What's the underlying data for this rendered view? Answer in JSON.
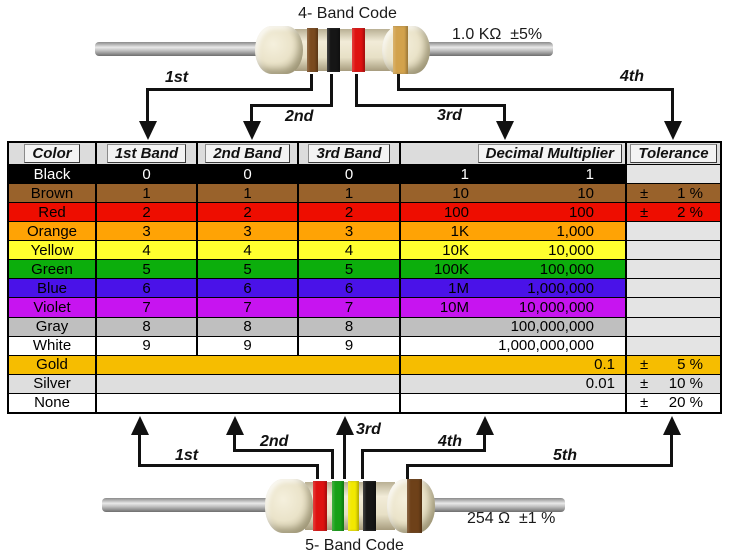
{
  "top_section": {
    "title": "4- Band Code",
    "resistor_label": "1.0 KΩ  ±5%",
    "arrow_labels": [
      "1st",
      "2nd",
      "3rd",
      "4th"
    ],
    "bands": [
      {
        "name": "brown",
        "hex": "#7a4a1e"
      },
      {
        "name": "black",
        "hex": "#161616"
      },
      {
        "name": "red",
        "hex": "#de1210"
      },
      {
        "name": "gold",
        "hex": "#d2a24c"
      }
    ]
  },
  "table": {
    "headers": [
      "Color",
      "1st Band",
      "2nd Band",
      "3rd Band",
      "Decimal Multiplier",
      "Tolerance"
    ],
    "header_bg": "#dcdcdc",
    "empty_tolerance_bg": "#e4e4e4",
    "rows": [
      {
        "color": "Black",
        "bg": "#000000",
        "fg": "#ffffff",
        "band1": "0",
        "band2": "0",
        "band3": "0",
        "mult_short": "1",
        "mult_long": "1",
        "tol_sign": "",
        "tol_value": "",
        "merged": false
      },
      {
        "color": "Brown",
        "bg": "#99622b",
        "fg": "#000000",
        "band1": "1",
        "band2": "1",
        "band3": "1",
        "mult_short": "10",
        "mult_long": "10",
        "tol_sign": "±",
        "tol_value": "1 %",
        "merged": false
      },
      {
        "color": "Red",
        "bg": "#ee0d00",
        "fg": "#000000",
        "band1": "2",
        "band2": "2",
        "band3": "2",
        "mult_short": "100",
        "mult_long": "100",
        "tol_sign": "±",
        "tol_value": "2 %",
        "merged": false
      },
      {
        "color": "Orange",
        "bg": "#ffa305",
        "fg": "#000000",
        "band1": "3",
        "band2": "3",
        "band3": "3",
        "mult_short": "1K",
        "mult_long": "1,000",
        "tol_sign": "",
        "tol_value": "",
        "merged": false
      },
      {
        "color": "Yellow",
        "bg": "#ffff2e",
        "fg": "#000000",
        "band1": "4",
        "band2": "4",
        "band3": "4",
        "mult_short": "10K",
        "mult_long": "10,000",
        "tol_sign": "",
        "tol_value": "",
        "merged": false
      },
      {
        "color": "Green",
        "bg": "#0cae0c",
        "fg": "#000000",
        "band1": "5",
        "band2": "5",
        "band3": "5",
        "mult_short": "100K",
        "mult_long": "100,000",
        "tol_sign": "",
        "tol_value": "",
        "merged": false
      },
      {
        "color": "Blue",
        "bg": "#4a12e8",
        "fg": "#000000",
        "band1": "6",
        "band2": "6",
        "band3": "6",
        "mult_short": "1M",
        "mult_long": "1,000,000",
        "tol_sign": "",
        "tol_value": "",
        "merged": false
      },
      {
        "color": "Violet",
        "bg": "#c714f0",
        "fg": "#000000",
        "band1": "7",
        "band2": "7",
        "band3": "7",
        "mult_short": "10M",
        "mult_long": "10,000,000",
        "tol_sign": "",
        "tol_value": "",
        "merged": false
      },
      {
        "color": "Gray",
        "bg": "#bfbfbf",
        "fg": "#000000",
        "band1": "8",
        "band2": "8",
        "band3": "8",
        "mult_short": "",
        "mult_long": "100,000,000",
        "tol_sign": "",
        "tol_value": "",
        "merged": false
      },
      {
        "color": "White",
        "bg": "#ffffff",
        "fg": "#000000",
        "band1": "9",
        "band2": "9",
        "band3": "9",
        "mult_short": "",
        "mult_long": "1,000,000,000",
        "tol_sign": "",
        "tol_value": "",
        "merged": false
      },
      {
        "color": "Gold",
        "bg": "#f6bd00",
        "fg": "#000000",
        "band1": "",
        "band2": "",
        "band3": "",
        "mult_short": "",
        "mult_long": "0.1",
        "tol_sign": "±",
        "tol_value": "5 %",
        "merged": true
      },
      {
        "color": "Silver",
        "bg": "#dedede",
        "fg": "#000000",
        "band1": "",
        "band2": "",
        "band3": "",
        "mult_short": "",
        "mult_long": "0.01",
        "tol_sign": "±",
        "tol_value": "10 %",
        "merged": true
      },
      {
        "color": "None",
        "bg": "#ffffff",
        "fg": "#000000",
        "band1": "",
        "band2": "",
        "band3": "",
        "mult_short": "",
        "mult_long": "",
        "tol_sign": "±",
        "tol_value": "20 %",
        "merged": true
      }
    ]
  },
  "bottom_section": {
    "title": "5- Band Code",
    "resistor_label": "254 Ω  ±1 %",
    "arrow_labels": [
      "1st",
      "2nd",
      "3rd",
      "4th",
      "5th"
    ],
    "bands": [
      {
        "name": "red",
        "hex": "#de1210"
      },
      {
        "name": "green",
        "hex": "#17a017"
      },
      {
        "name": "yellow",
        "hex": "#f2e800"
      },
      {
        "name": "black",
        "hex": "#161616"
      },
      {
        "name": "brown",
        "hex": "#6e4119"
      }
    ]
  }
}
